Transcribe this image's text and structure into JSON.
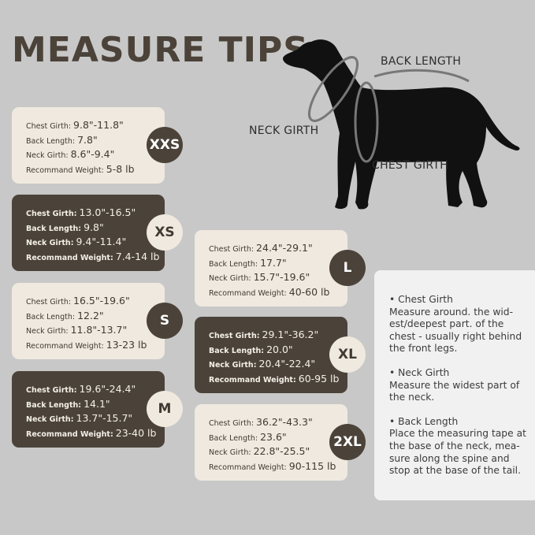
{
  "title": "MEASURE TIPS",
  "diagram_labels": {
    "back_length": "BACK LENGTH",
    "neck_girth": "NECK GIRTH",
    "chest_girth": "CHEST GIRTH"
  },
  "field_labels": {
    "chest": "Chest Girth:",
    "back": "Back Length:",
    "neck": "Neck Girth:",
    "weight": "Recommand Weight:"
  },
  "sizes": [
    {
      "size": "XXS",
      "chest": "9.8\"-11.8\"",
      "back": "7.8\"",
      "neck": "8.6\"-9.4\"",
      "weight": "5-8 lb"
    },
    {
      "size": "XS",
      "chest": "13.0\"-16.5\"",
      "back": "9.8\"",
      "neck": "9.4\"-11.4\"",
      "weight": "7.4-14 lb"
    },
    {
      "size": "S",
      "chest": "16.5\"-19.6\"",
      "back": "12.2\"",
      "neck": "11.8\"-13.7\"",
      "weight": "13-23 lb"
    },
    {
      "size": "M",
      "chest": "19.6\"-24.4\"",
      "back": "14.1\"",
      "neck": "13.7\"-15.7\"",
      "weight": "23-40 lb"
    },
    {
      "size": "L",
      "chest": "24.4\"-29.1\"",
      "back": "17.7\"",
      "neck": "15.7\"-19.6\"",
      "weight": "40-60 lb"
    },
    {
      "size": "XL",
      "chest": "29.1\"-36.2\"",
      "back": "20.0\"",
      "neck": "20.4\"-22.4\"",
      "weight": "60-95 lb"
    },
    {
      "size": "2XL",
      "chest": "36.2\"-43.3\"",
      "back": "23.6\"",
      "neck": "22.8\"-25.5\"",
      "weight": "90-115 lb"
    }
  ],
  "tips": [
    {
      "heading": "• Chest Girth",
      "text": "Measure around. the wid-est/deepest part. of the chest - usually right behind the front legs."
    },
    {
      "heading": "• Neck Girth",
      "text": "Measure the widest part of the neck."
    },
    {
      "heading": "• Back Length",
      "text": "Place the measuring tape at the base of the neck, mea-sure along the spine and stop at the base of the tail."
    }
  ],
  "colors": {
    "background": "#c8c8c8",
    "dark": "#4b433a",
    "light": "#efe9df",
    "info": "#f2f1f1"
  }
}
